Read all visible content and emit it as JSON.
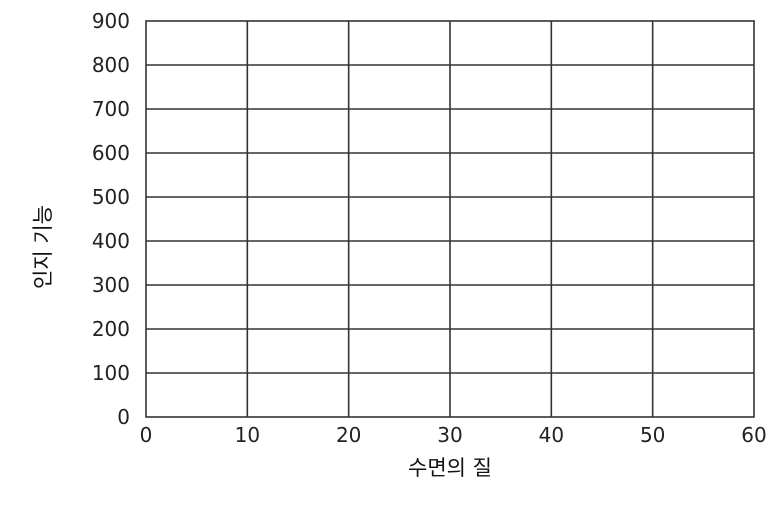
{
  "chart_data": {
    "type": "line",
    "title": "",
    "xlabel": "수면의 질",
    "ylabel": "인지 기능",
    "xlim": [
      0,
      60
    ],
    "ylim": [
      0,
      900
    ],
    "x_ticks": [
      0,
      10,
      20,
      30,
      40,
      50,
      60
    ],
    "y_ticks": [
      0,
      100,
      200,
      300,
      400,
      500,
      600,
      700,
      800,
      900
    ],
    "grid": true,
    "series": []
  },
  "colors": {
    "grid": "#333333",
    "text": "#222222"
  }
}
